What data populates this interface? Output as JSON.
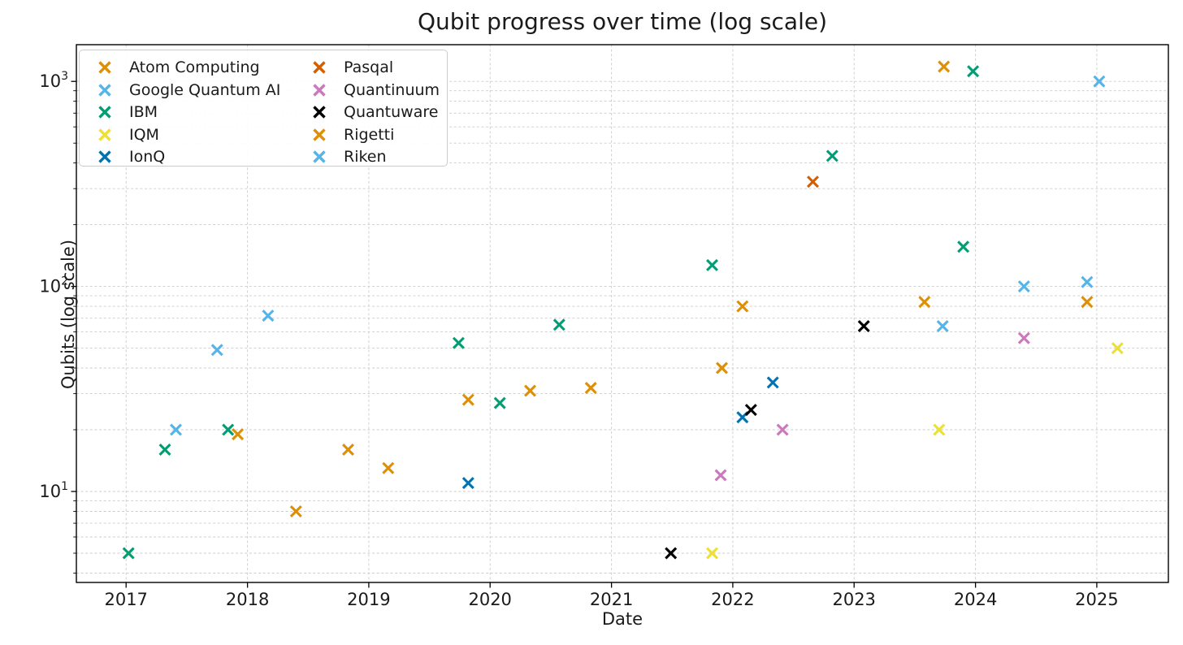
{
  "chart_data": {
    "type": "scatter",
    "title": "Qubit progress over time (log scale)",
    "xlabel": "Date",
    "ylabel": "Qubits (log scale)",
    "marker": "x",
    "grid": "both-major-and-minor, dashed light gray",
    "legend_position": "upper left, 2 columns",
    "x_axis": {
      "ticks": [
        2017,
        2018,
        2019,
        2020,
        2021,
        2022,
        2023,
        2024,
        2025
      ],
      "range": [
        2016.59,
        2025.59
      ]
    },
    "y_axis": {
      "scale": "log",
      "tick_base": "10",
      "tick_exponents": [
        1,
        2,
        3
      ],
      "range": [
        3.6,
        1510
      ]
    },
    "series": [
      {
        "name": "Atom Computing",
        "color": "#de8f05",
        "points": [
          [
            2023.74,
            1180
          ]
        ]
      },
      {
        "name": "Google Quantum AI",
        "color": "#56b4e9",
        "points": [
          [
            2017.41,
            20
          ],
          [
            2017.75,
            49
          ],
          [
            2018.17,
            72
          ],
          [
            2024.4,
            100
          ],
          [
            2024.92,
            105
          ]
        ]
      },
      {
        "name": "IBM",
        "color": "#029e73",
        "points": [
          [
            2017.02,
            5
          ],
          [
            2017.32,
            16
          ],
          [
            2017.84,
            20
          ],
          [
            2019.74,
            53
          ],
          [
            2020.08,
            27
          ],
          [
            2020.57,
            65
          ],
          [
            2021.83,
            127
          ],
          [
            2022.82,
            433
          ],
          [
            2023.9,
            156
          ],
          [
            2023.98,
            1121
          ]
        ]
      },
      {
        "name": "IQM",
        "color": "#ece133",
        "points": [
          [
            2021.83,
            5
          ],
          [
            2023.7,
            20
          ],
          [
            2025.17,
            50
          ]
        ]
      },
      {
        "name": "IonQ",
        "color": "#0173b2",
        "points": [
          [
            2019.82,
            11
          ],
          [
            2022.08,
            23
          ],
          [
            2022.33,
            34
          ]
        ]
      },
      {
        "name": "Pasqal",
        "color": "#d55e00",
        "points": [
          [
            2022.66,
            324
          ]
        ]
      },
      {
        "name": "Quantinuum",
        "color": "#cc78bc",
        "points": [
          [
            2021.9,
            12
          ],
          [
            2022.41,
            20
          ],
          [
            2024.4,
            56
          ]
        ]
      },
      {
        "name": "Quantuware",
        "color": "#000000",
        "points": [
          [
            2021.49,
            5
          ],
          [
            2022.15,
            25
          ],
          [
            2023.08,
            64
          ]
        ]
      },
      {
        "name": "Rigetti",
        "color": "#de8f05",
        "points": [
          [
            2017.92,
            19
          ],
          [
            2018.4,
            8
          ],
          [
            2018.83,
            16
          ],
          [
            2019.16,
            13
          ],
          [
            2019.82,
            28
          ],
          [
            2020.33,
            31
          ],
          [
            2020.83,
            32
          ],
          [
            2021.91,
            40
          ],
          [
            2022.08,
            80
          ],
          [
            2023.58,
            84
          ],
          [
            2024.92,
            84
          ]
        ]
      },
      {
        "name": "Riken",
        "color": "#56b4e9",
        "points": [
          [
            2023.73,
            64
          ],
          [
            2025.02,
            1000
          ]
        ]
      }
    ]
  }
}
